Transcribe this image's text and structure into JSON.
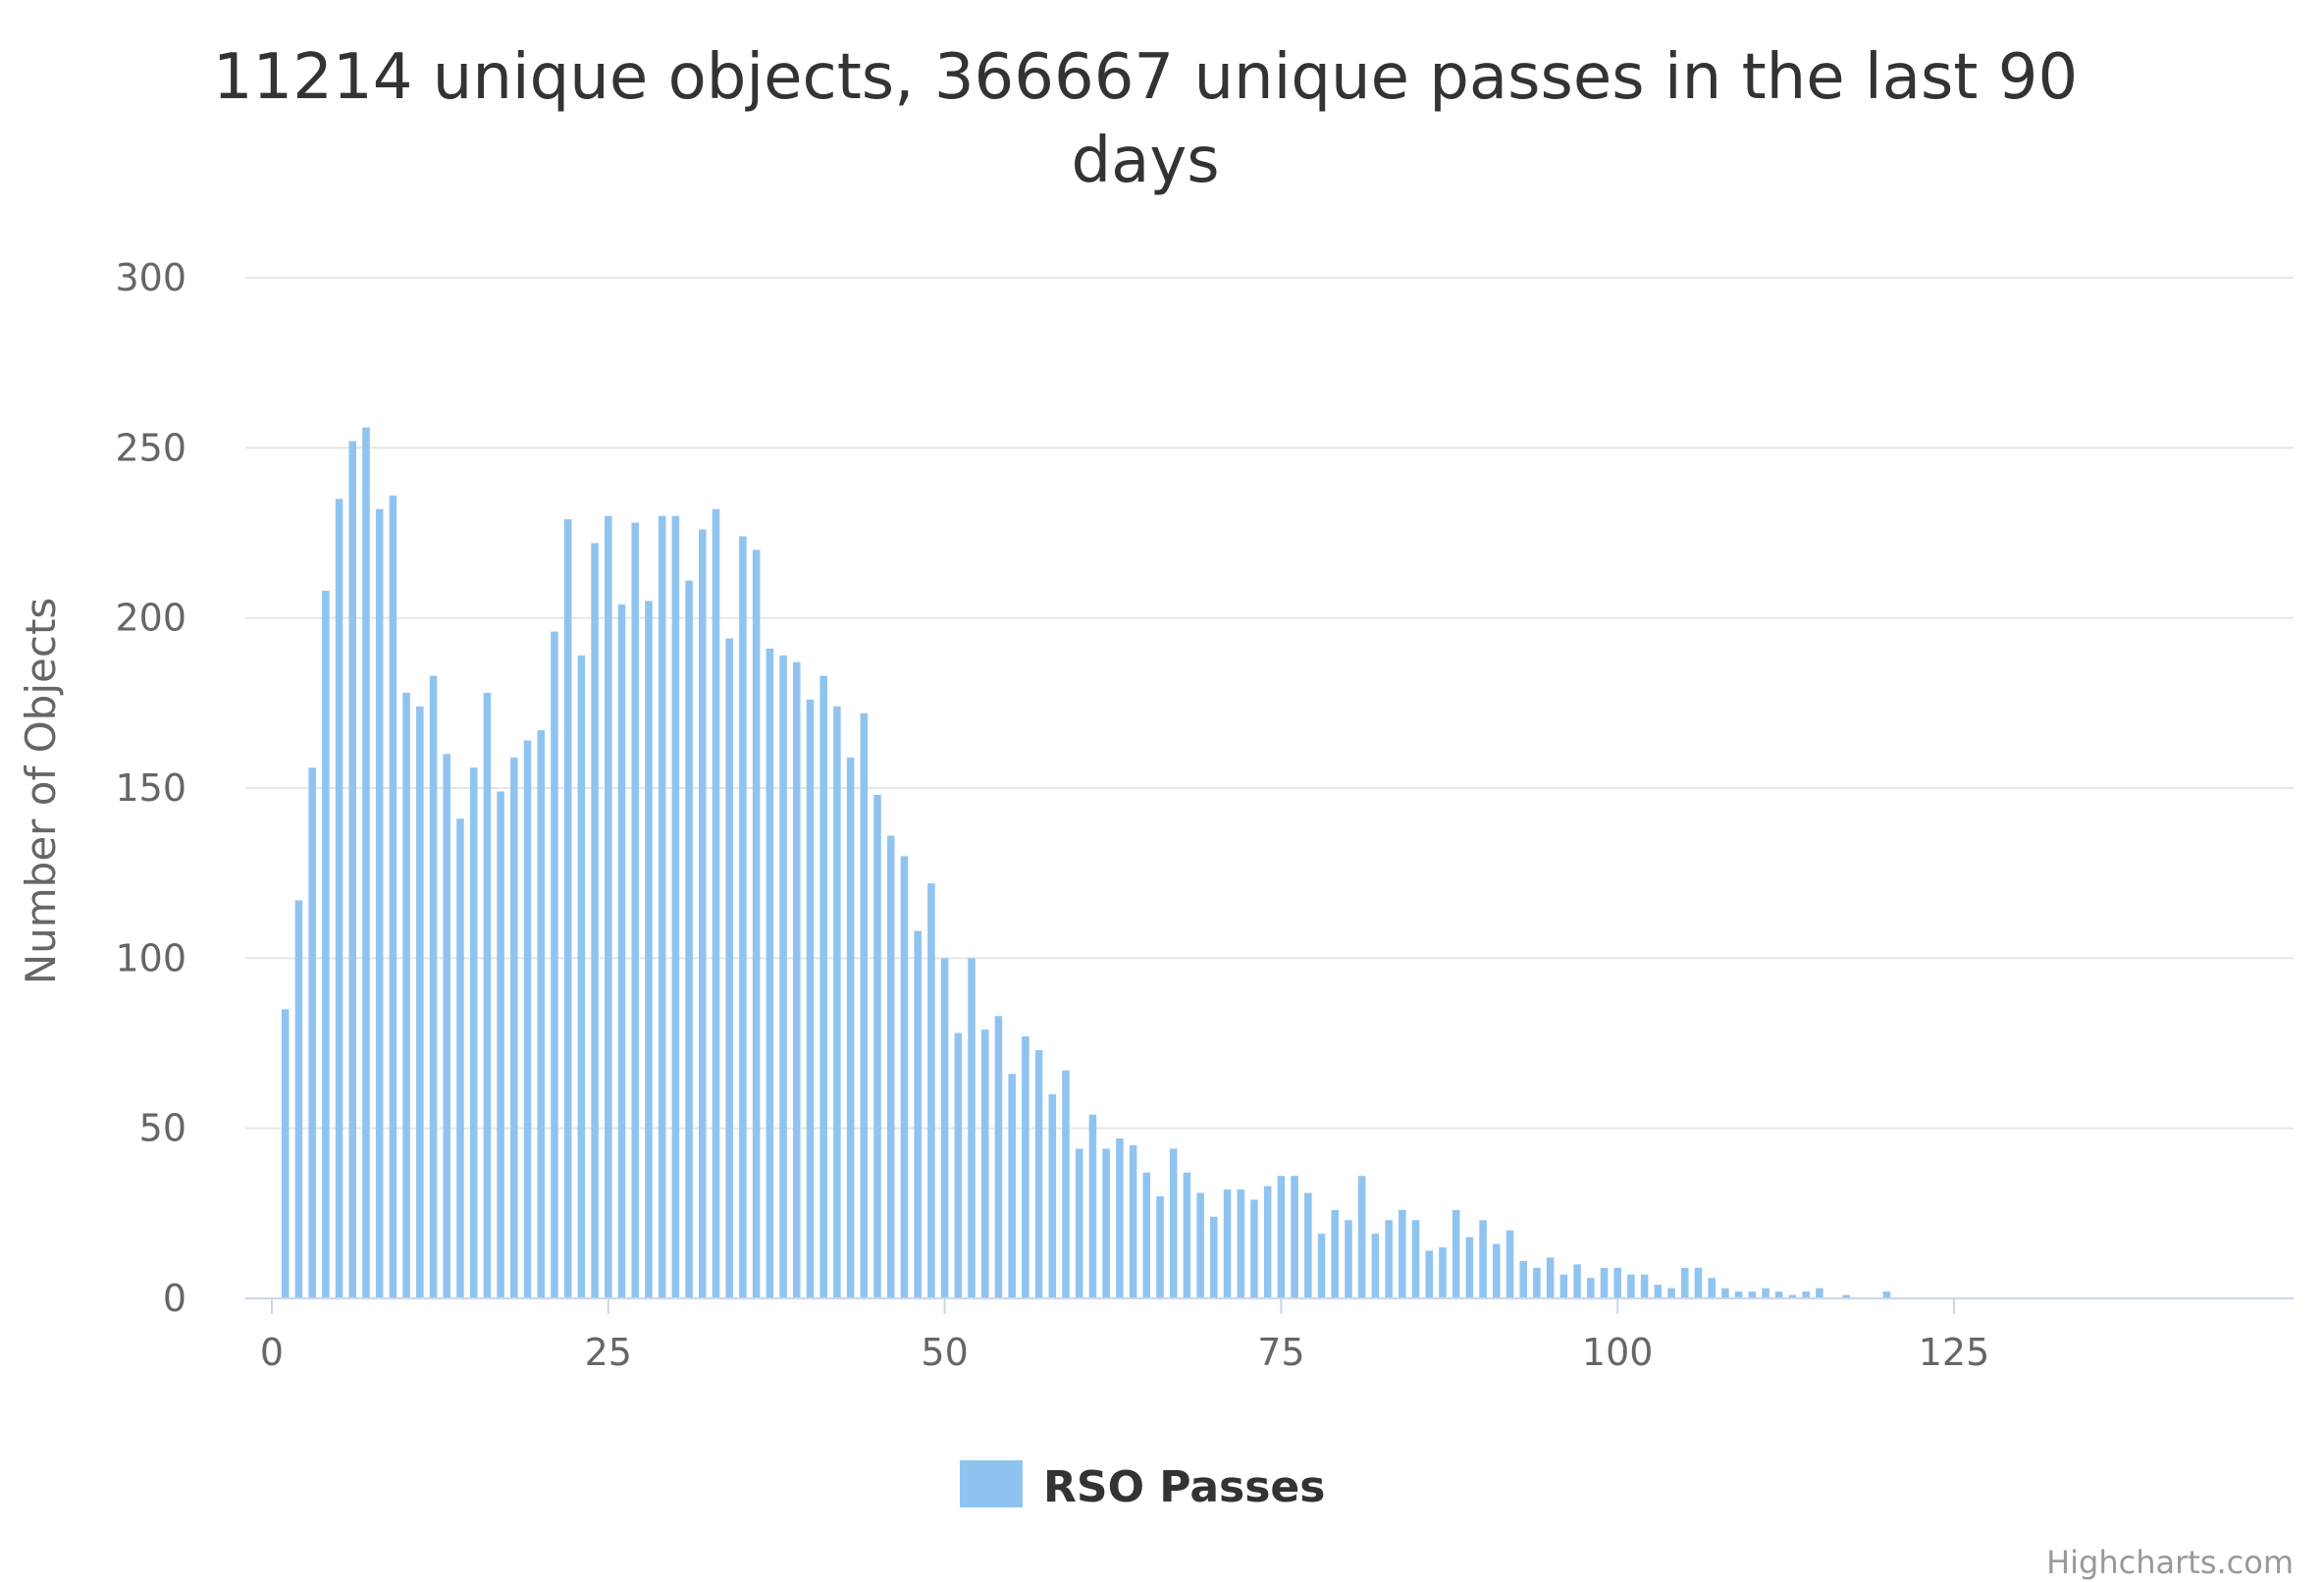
{
  "chart_data": {
    "type": "bar",
    "title_lines": [
      "11214 unique objects, 366667 unique passes in the last 90",
      "days"
    ],
    "ylabel": "Number of Objects",
    "xlabel": "",
    "ylim": [
      0,
      300
    ],
    "xlim": [
      -0.5,
      150
    ],
    "yticks": [
      0,
      50,
      100,
      150,
      200,
      250,
      300
    ],
    "xticks": [
      0,
      25,
      50,
      75,
      100,
      125
    ],
    "grid": true,
    "legend_position": "bottom-center",
    "credits": "Highcharts.com",
    "series": [
      {
        "name": "RSO Passes",
        "color": "#90c4f0",
        "x": [
          1,
          2,
          3,
          4,
          5,
          6,
          7,
          8,
          9,
          10,
          11,
          12,
          13,
          14,
          15,
          16,
          17,
          18,
          19,
          20,
          21,
          22,
          23,
          24,
          25,
          26,
          27,
          28,
          29,
          30,
          31,
          32,
          33,
          34,
          35,
          36,
          37,
          38,
          39,
          40,
          41,
          42,
          43,
          44,
          45,
          46,
          47,
          48,
          49,
          50,
          51,
          52,
          53,
          54,
          55,
          56,
          57,
          58,
          59,
          60,
          61,
          62,
          63,
          64,
          65,
          66,
          67,
          68,
          69,
          70,
          71,
          72,
          73,
          74,
          75,
          76,
          77,
          78,
          79,
          80,
          81,
          82,
          83,
          84,
          85,
          86,
          87,
          88,
          89,
          90,
          91,
          92,
          93,
          94,
          95,
          96,
          97,
          98,
          99,
          100,
          101,
          102,
          103,
          104,
          105,
          106,
          107,
          108,
          109,
          110,
          111,
          112,
          113,
          114,
          115,
          116,
          117,
          118,
          119,
          120
        ],
        "values": [
          85,
          117,
          156,
          208,
          235,
          252,
          256,
          232,
          236,
          178,
          174,
          183,
          160,
          141,
          156,
          178,
          149,
          159,
          164,
          167,
          196,
          229,
          189,
          222,
          230,
          204,
          228,
          205,
          230,
          230,
          211,
          226,
          232,
          194,
          224,
          220,
          191,
          189,
          187,
          176,
          183,
          174,
          159,
          172,
          148,
          136,
          130,
          108,
          122,
          100,
          78,
          100,
          79,
          83,
          66,
          77,
          73,
          60,
          67,
          44,
          54,
          44,
          47,
          45,
          37,
          30,
          44,
          37,
          31,
          24,
          32,
          32,
          29,
          33,
          36,
          36,
          31,
          19,
          26,
          23,
          36,
          19,
          23,
          26,
          23,
          14,
          15,
          26,
          18,
          23,
          16,
          20,
          11,
          9,
          12,
          7,
          10,
          6,
          9,
          9,
          7,
          7,
          4,
          3,
          9,
          9,
          6,
          3,
          2,
          2,
          3,
          2,
          1,
          2,
          3,
          0,
          1,
          0,
          0,
          2
        ]
      }
    ]
  }
}
